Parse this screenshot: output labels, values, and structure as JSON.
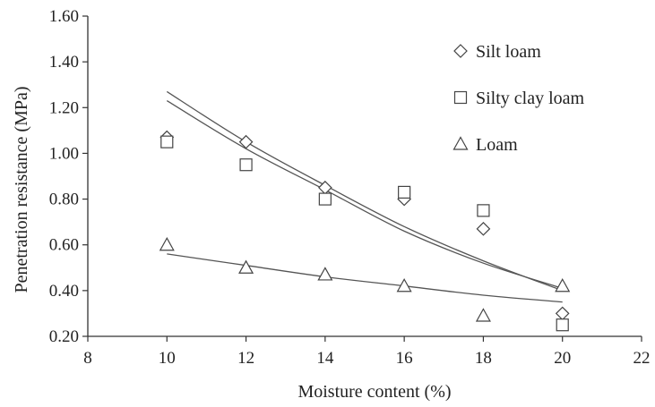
{
  "chart_data": {
    "type": "scatter",
    "xlabel": "Moisture content (%)",
    "ylabel": "Penetration resistance (MPa)",
    "xlim": [
      8,
      22
    ],
    "ylim": [
      0.2,
      1.6
    ],
    "x_ticks": [
      "8",
      "10",
      "12",
      "14",
      "16",
      "18",
      "20",
      "22"
    ],
    "y_ticks": [
      "0.20",
      "0.40",
      "0.60",
      "0.80",
      "1.00",
      "1.20",
      "1.40",
      "1.60"
    ],
    "grid": false,
    "legend_position": "top-right",
    "series": [
      {
        "name": "Silt loam",
        "marker": "diamond",
        "x": [
          10,
          12,
          14,
          16,
          18,
          20
        ],
        "y": [
          1.07,
          1.05,
          0.85,
          0.8,
          0.67,
          0.3
        ],
        "trend": {
          "x": [
            10,
            12,
            14,
            16,
            18,
            20
          ],
          "y": [
            1.27,
            1.05,
            0.86,
            0.68,
            0.53,
            0.4
          ]
        }
      },
      {
        "name": "Silty clay loam",
        "marker": "square",
        "x": [
          10,
          12,
          14,
          16,
          18,
          20
        ],
        "y": [
          1.05,
          0.95,
          0.8,
          0.83,
          0.75,
          0.25
        ],
        "trend": {
          "x": [
            10,
            12,
            14,
            16,
            18,
            20
          ],
          "y": [
            1.23,
            1.02,
            0.84,
            0.66,
            0.52,
            0.41
          ]
        }
      },
      {
        "name": "Loam",
        "marker": "triangle",
        "x": [
          10,
          12,
          14,
          16,
          18,
          20
        ],
        "y": [
          0.6,
          0.5,
          0.47,
          0.42,
          0.29,
          0.42
        ],
        "trend": {
          "x": [
            10,
            12,
            14,
            16,
            18,
            20
          ],
          "y": [
            0.56,
            0.51,
            0.46,
            0.42,
            0.38,
            0.35
          ]
        }
      }
    ],
    "colors": {
      "axis": "#333333",
      "marker": "#444444",
      "trend": "#555555"
    }
  }
}
